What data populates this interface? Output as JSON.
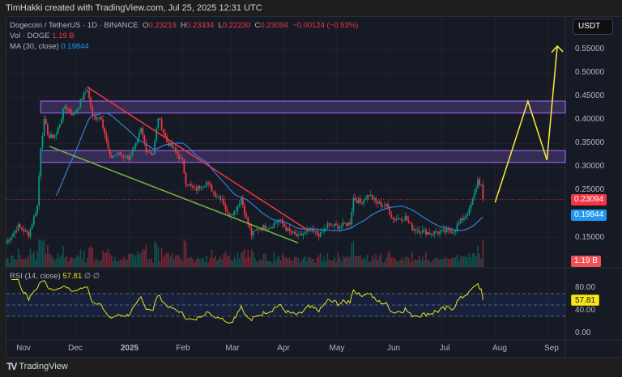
{
  "credit": "TimHakki created with TradingView.com, Jul 25, 2025 12:31 UTC",
  "legend": {
    "symbol": "Dogecoin / TetherUS · 1D · BINANCE",
    "o_label": "O",
    "o": "0.23219",
    "h_label": "H",
    "h": "0.23334",
    "l_label": "L",
    "l": "0.22230",
    "c_label": "C",
    "c": "0.23094",
    "change": "−0.00124 (−0.53%)",
    "vol_label": "Vol · DOGE",
    "vol": "1.19 B",
    "ma_label": "MA (30, close)",
    "ma": "0.19844",
    "rsi_label": "RSI (14, close)",
    "rsi": "57.81",
    "rsi_extra": "∅ ∅"
  },
  "currency": "USDT",
  "tags": {
    "last_price": "0.23094",
    "ma": "0.19844",
    "volume": "1.19 B",
    "rsi": "57.81"
  },
  "footer": {
    "brand": "TradingView"
  },
  "colors": {
    "up": "#089981",
    "down": "#f23645",
    "ma": "#2962ff",
    "rsi": "#e8e21a",
    "zone": "#7e57c2",
    "resistance": "#f23645",
    "support": "#7cb342",
    "projection": "#ffeb3b"
  },
  "chart_data": {
    "type": "candlestick",
    "symbol": "DOGEUSDT",
    "interval": "1D",
    "ylim": [
      0.12,
      0.57
    ],
    "price_ticks": [
      "0.55000",
      "0.50000",
      "0.45000",
      "0.40000",
      "0.35000",
      "0.30000",
      "0.25000",
      "0.15000"
    ],
    "rsi_ticks": [
      "80.00",
      "40.00",
      "0.00"
    ],
    "x_ticks": [
      "Nov",
      "Dec",
      "2025",
      "Feb",
      "Mar",
      "Apr",
      "May",
      "Jun",
      "Jul",
      "Aug",
      "Sep"
    ],
    "close_path": [
      [
        "2024-10-22",
        0.14
      ],
      [
        "2024-10-29",
        0.174
      ],
      [
        "2024-11-04",
        0.157
      ],
      [
        "2024-11-09",
        0.217
      ],
      [
        "2024-11-11",
        0.345
      ],
      [
        "2024-11-13",
        0.397
      ],
      [
        "2024-11-16",
        0.362
      ],
      [
        "2024-11-20",
        0.37
      ],
      [
        "2024-11-25",
        0.43
      ],
      [
        "2024-11-30",
        0.41
      ],
      [
        "2024-12-04",
        0.44
      ],
      [
        "2024-12-08",
        0.466
      ],
      [
        "2024-12-11",
        0.406
      ],
      [
        "2024-12-16",
        0.406
      ],
      [
        "2024-12-19",
        0.354
      ],
      [
        "2024-12-21",
        0.32
      ],
      [
        "2024-12-25",
        0.328
      ],
      [
        "2025-01-01",
        0.32
      ],
      [
        "2025-01-05",
        0.345
      ],
      [
        "2025-01-08",
        0.38
      ],
      [
        "2025-01-11",
        0.337
      ],
      [
        "2025-01-15",
        0.328
      ],
      [
        "2025-01-18",
        0.406
      ],
      [
        "2025-01-23",
        0.354
      ],
      [
        "2025-01-27",
        0.337
      ],
      [
        "2025-02-01",
        0.311
      ],
      [
        "2025-02-03",
        0.268
      ],
      [
        "2025-02-08",
        0.251
      ],
      [
        "2025-02-15",
        0.268
      ],
      [
        "2025-02-20",
        0.242
      ],
      [
        "2025-02-24",
        0.234
      ],
      [
        "2025-02-27",
        0.2
      ],
      [
        "2025-03-03",
        0.205
      ],
      [
        "2025-03-07",
        0.234
      ],
      [
        "2025-03-10",
        0.19
      ],
      [
        "2025-03-13",
        0.156
      ],
      [
        "2025-03-17",
        0.17
      ],
      [
        "2025-03-24",
        0.174
      ],
      [
        "2025-03-29",
        0.188
      ],
      [
        "2025-04-03",
        0.165
      ],
      [
        "2025-04-09",
        0.151
      ],
      [
        "2025-04-15",
        0.165
      ],
      [
        "2025-04-22",
        0.156
      ],
      [
        "2025-04-26",
        0.177
      ],
      [
        "2025-05-03",
        0.174
      ],
      [
        "2025-05-09",
        0.182
      ],
      [
        "2025-05-11",
        0.234
      ],
      [
        "2025-05-15",
        0.225
      ],
      [
        "2025-05-20",
        0.242
      ],
      [
        "2025-05-24",
        0.225
      ],
      [
        "2025-05-30",
        0.217
      ],
      [
        "2025-06-03",
        0.19
      ],
      [
        "2025-06-10",
        0.193
      ],
      [
        "2025-06-14",
        0.17
      ],
      [
        "2025-06-24",
        0.16
      ],
      [
        "2025-07-01",
        0.162
      ],
      [
        "2025-07-08",
        0.165
      ],
      [
        "2025-07-13",
        0.19
      ],
      [
        "2025-07-17",
        0.207
      ],
      [
        "2025-07-20",
        0.242
      ],
      [
        "2025-07-22",
        0.273
      ],
      [
        "2025-07-24",
        0.26
      ],
      [
        "2025-07-25",
        0.231
      ]
    ],
    "indicators": {
      "ma_period": 30,
      "rsi_period": 14,
      "rsi_bands": [
        70,
        50,
        30
      ]
    },
    "drawings": {
      "zones": [
        {
          "from": "2024-11-11",
          "top": 0.44,
          "bottom": 0.415
        },
        {
          "from": "2024-11-11",
          "top": 0.335,
          "bottom": 0.31
        }
      ],
      "resistance_line": [
        [
          "2024-12-08",
          0.47
        ],
        [
          "2025-04-15",
          0.165
        ]
      ],
      "support_line": [
        [
          "2024-11-16",
          0.344
        ],
        [
          "2025-04-09",
          0.139
        ]
      ],
      "projection": [
        [
          "2025-08-01",
          0.225
        ],
        [
          "2025-08-20",
          0.44
        ],
        [
          "2025-08-31",
          0.315
        ],
        [
          "2025-09-06",
          0.557
        ]
      ]
    }
  }
}
